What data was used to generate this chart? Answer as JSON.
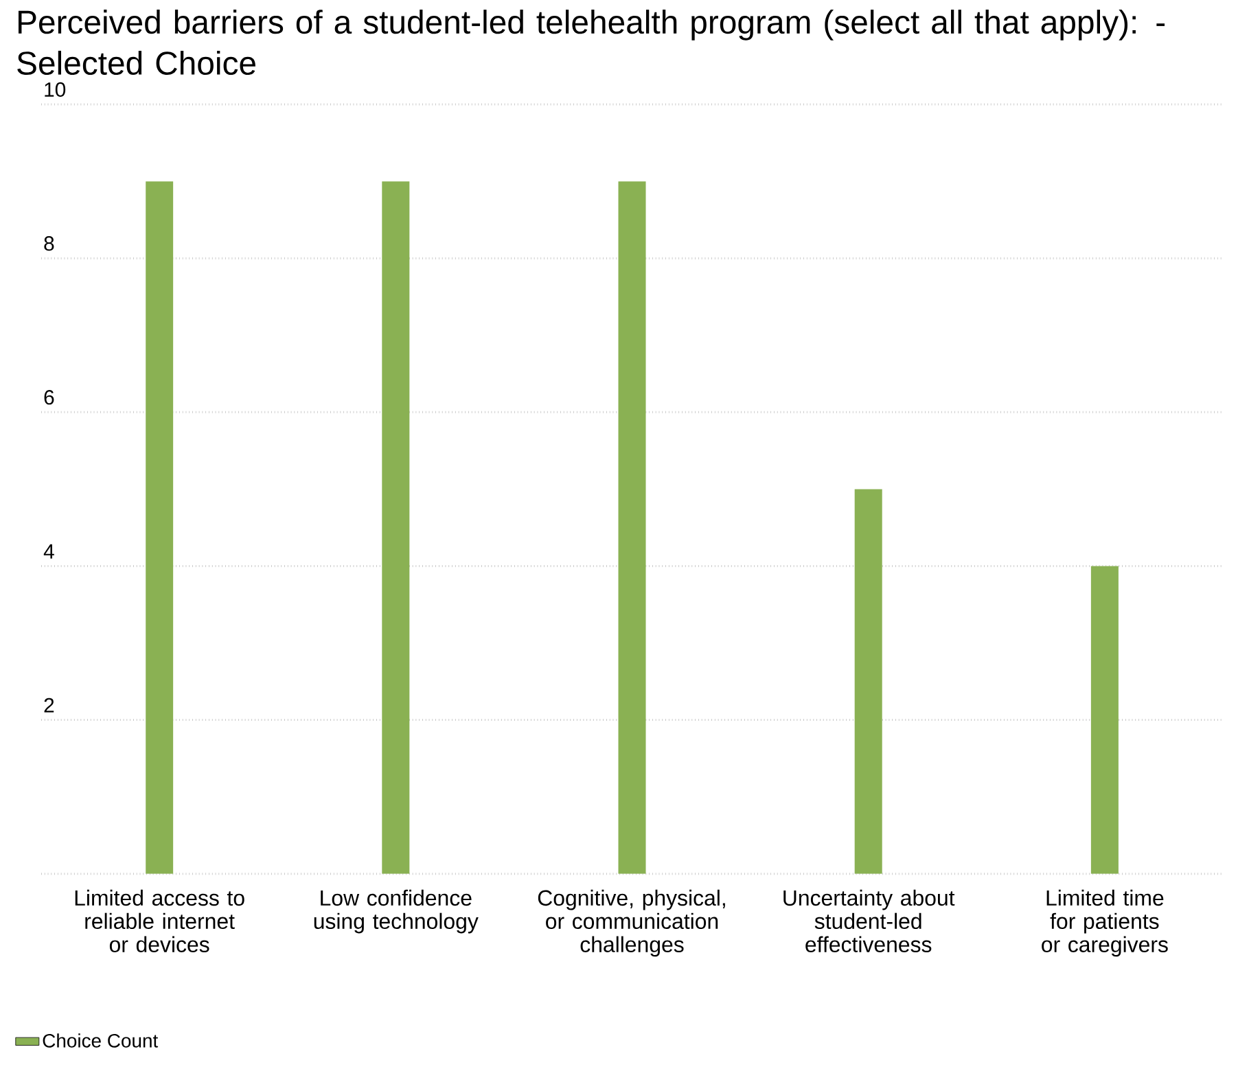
{
  "chart_data": {
    "type": "bar",
    "title": "Perceived barriers of a student-led telehealth program (select all that apply): - Selected Choice",
    "categories": [
      "Limited access to reliable internet or devices",
      "Low confidence using technology",
      "Cognitive, physical, or communication challenges",
      "Uncertainty about student-led effectiveness",
      "Limited time for patients or caregivers"
    ],
    "series": [
      {
        "name": "Choice Count",
        "color": "#8ab153",
        "values": [
          9,
          9,
          9,
          5,
          4
        ]
      }
    ],
    "ylim": [
      0,
      10
    ],
    "yticks": [
      {
        "value": 0,
        "label": null
      },
      2,
      4,
      6,
      8,
      10
    ],
    "grid": "y",
    "legend": "bottom left"
  }
}
